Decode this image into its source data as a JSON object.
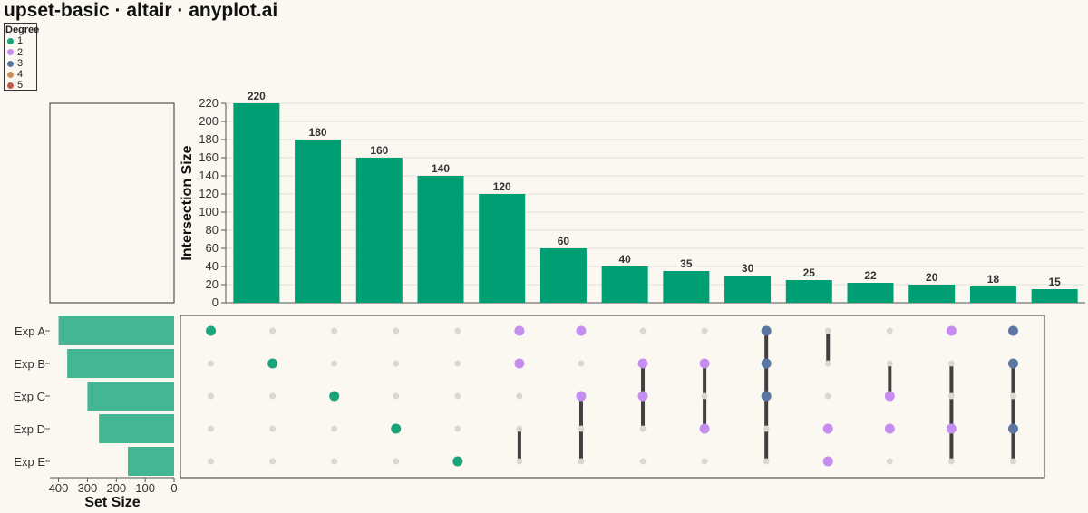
{
  "title": "upset-basic · altair · anyplot.ai",
  "legend": {
    "title": "Degree",
    "items": [
      {
        "label": "1",
        "color": "#1BA37A"
      },
      {
        "label": "2",
        "color": "#C58DF0"
      },
      {
        "label": "3",
        "color": "#5A77A4"
      },
      {
        "label": "4",
        "color": "#C9915E"
      },
      {
        "label": "5",
        "color": "#C05A4F"
      }
    ]
  },
  "chart_data": {
    "type": "bar",
    "intersection_bars": {
      "ylabel": "Intersection Size",
      "ylim": [
        0,
        220
      ],
      "yticks": [
        0,
        20,
        40,
        60,
        80,
        100,
        120,
        140,
        160,
        180,
        200,
        220
      ],
      "color": "#009E73",
      "values": [
        220,
        180,
        160,
        140,
        120,
        60,
        40,
        35,
        30,
        25,
        22,
        20,
        18,
        15
      ]
    },
    "set_size_bars": {
      "xlabel": "Set Size",
      "xlim": [
        0,
        430
      ],
      "xticks": [
        400,
        300,
        200,
        100,
        0
      ],
      "color": "#3BB28D",
      "sets": [
        "Exp A",
        "Exp B",
        "Exp C",
        "Exp D",
        "Exp E"
      ],
      "values": [
        400,
        370,
        300,
        260,
        160
      ]
    },
    "matrix": {
      "sets": [
        "Exp A",
        "Exp B",
        "Exp C",
        "Exp D",
        "Exp E"
      ],
      "inactive_color": "#D9D9D3",
      "line_color": "#404040",
      "intersections": [
        {
          "members": [
            0
          ],
          "degree": 1
        },
        {
          "members": [
            1
          ],
          "degree": 1
        },
        {
          "members": [
            2
          ],
          "degree": 1
        },
        {
          "members": [
            3
          ],
          "degree": 1
        },
        {
          "members": [
            4
          ],
          "degree": 1
        },
        {
          "members": [
            0,
            1
          ],
          "degree": 2
        },
        {
          "members": [
            0,
            2
          ],
          "degree": 2
        },
        {
          "members": [
            1,
            2
          ],
          "degree": 2
        },
        {
          "members": [
            1,
            3
          ],
          "degree": 2
        },
        {
          "members": [
            0,
            1,
            2
          ],
          "degree": 3
        },
        {
          "members": [
            3,
            4
          ],
          "degree": 2
        },
        {
          "members": [
            2,
            3
          ],
          "degree": 2
        },
        {
          "members": [
            0,
            3
          ],
          "degree": 2
        },
        {
          "members": [
            0,
            1,
            3
          ],
          "degree": 3
        }
      ],
      "connector_spans": [
        null,
        null,
        null,
        null,
        null,
        [
          3,
          4
        ],
        [
          2,
          4
        ],
        [
          1,
          3
        ],
        [
          1,
          3
        ],
        [
          0,
          4
        ],
        [
          0,
          1
        ],
        [
          1,
          2
        ],
        [
          1,
          4
        ],
        [
          1,
          4
        ]
      ]
    }
  }
}
